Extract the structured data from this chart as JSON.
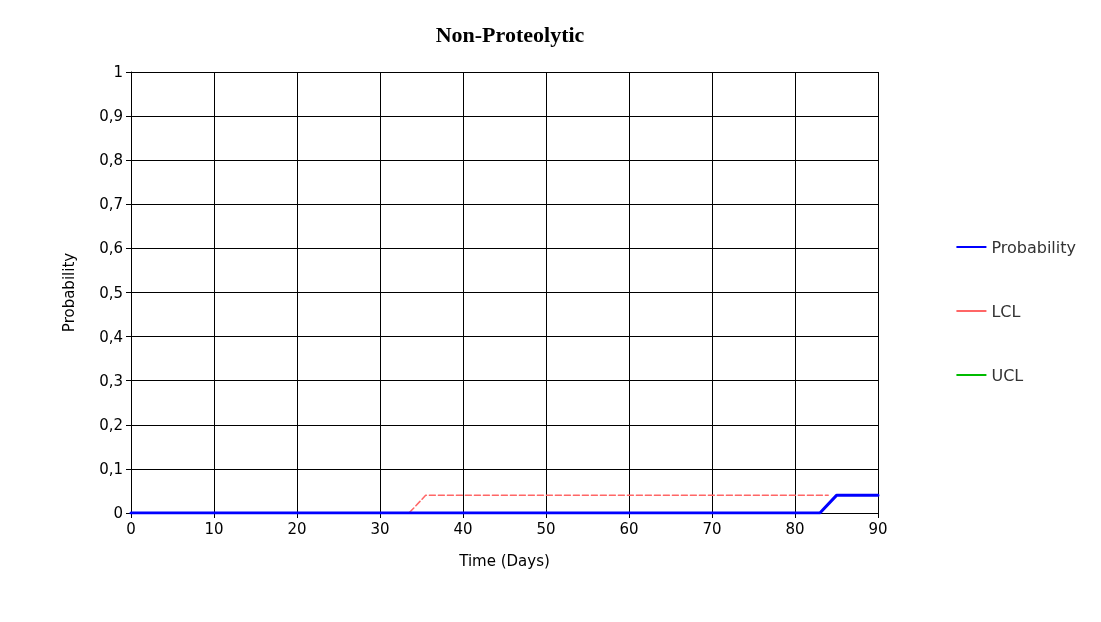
{
  "chart_data": {
    "type": "line",
    "title": "Non-Proteolytic",
    "xlabel": "Time (Days)",
    "ylabel": "Probability",
    "series": [
      {
        "name": "Probability",
        "color": "#0000ff",
        "line_style": "solid",
        "x": [
          0,
          83,
          85,
          90
        ],
        "values": [
          0,
          0,
          0.04,
          0.04
        ]
      },
      {
        "name": "LCL",
        "color": "#ff6666",
        "line_style": "dashed",
        "x": [
          0,
          33.5,
          35.5,
          84
        ],
        "values": [
          0,
          0,
          0.04,
          0.04
        ]
      },
      {
        "name": "UCL",
        "color": "#00bb00",
        "line_style": "dashed"
      }
    ],
    "xlim": [
      0,
      90
    ],
    "xticks": [
      0,
      10,
      20,
      30,
      40,
      50,
      60,
      70,
      80,
      90
    ],
    "ylim": [
      0,
      1
    ],
    "yticks": [
      0,
      {
        "value": 0.1,
        "label": "0,1"
      },
      {
        "value": 0.2,
        "label": "0,2"
      },
      {
        "value": 0.3,
        "label": "0,3"
      },
      {
        "value": 0.4,
        "label": "0,4"
      },
      {
        "value": 0.5,
        "label": "0,5"
      },
      {
        "value": 0.6,
        "label": "0,6"
      },
      {
        "value": 0.7,
        "label": "0,7"
      },
      {
        "value": 0.8,
        "label": "0,8"
      },
      {
        "value": 0.9,
        "label": "0,9"
      },
      1
    ],
    "grid": true,
    "legend": "right",
    "marker": "none"
  }
}
